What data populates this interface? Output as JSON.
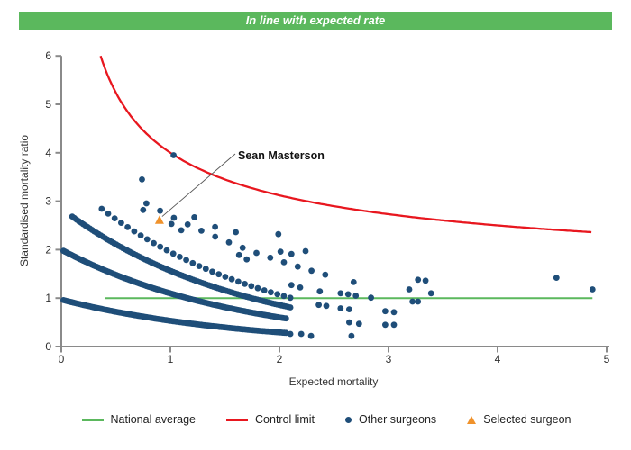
{
  "header": {
    "title": "In line with expected rate",
    "bar_color": "#5bb85d",
    "text_color": "#ffffff"
  },
  "chart_data": {
    "type": "scatter",
    "title": "",
    "xlabel": "Expected mortality",
    "ylabel": "Standardised mortality ratio",
    "xlim": [
      0,
      5
    ],
    "ylim": [
      0,
      6
    ],
    "x_ticks": [
      0,
      1,
      2,
      3,
      4,
      5
    ],
    "y_ticks": [
      0,
      1,
      2,
      3,
      4,
      5,
      6
    ],
    "grid": false,
    "legend_position": "bottom",
    "national_average": {
      "label": "National average",
      "y": 1,
      "x_range": [
        0.4,
        4.87
      ],
      "color": "#5bb85d"
    },
    "control_limit": {
      "label": "Control limit",
      "formula": "y = 1 + 3/sqrt(x)",
      "x_range": [
        0.36,
        4.87
      ],
      "color": "#e8171f"
    },
    "other_surgeons": {
      "label": "Other surgeons",
      "color": "#1f4e79",
      "marker_radius_px": 3.4,
      "bands_formula": "y = a * exp(b * x), sampled uniformly from x_start to x_end",
      "bands": [
        {
          "a": 0.97,
          "b": -0.6,
          "x_start": 0.02,
          "x_end": 2.06,
          "count": 135
        },
        {
          "a": 2.0,
          "b": -0.6,
          "x_start": 0.02,
          "x_end": 2.06,
          "count": 135
        },
        {
          "a": 2.85,
          "b": -0.6,
          "x_start": 0.1,
          "x_end": 2.1,
          "count": 100
        },
        {
          "a": 3.55,
          "b": -0.6,
          "x_start": 0.37,
          "x_end": 2.1,
          "count": 30
        },
        {
          "a": 4.1,
          "b": -0.42,
          "x_start": 0.78,
          "x_end": 2.42,
          "count": 14
        }
      ],
      "points": [
        [
          1.03,
          3.95
        ],
        [
          0.74,
          3.45
        ],
        [
          0.75,
          2.82
        ],
        [
          1.01,
          2.53
        ],
        [
          1.1,
          2.4
        ],
        [
          1.22,
          2.67
        ],
        [
          1.41,
          2.47
        ],
        [
          1.6,
          2.36
        ],
        [
          1.63,
          1.89
        ],
        [
          1.7,
          1.8
        ],
        [
          1.99,
          2.32
        ],
        [
          2.01,
          1.96
        ],
        [
          2.11,
          1.91
        ],
        [
          2.24,
          1.97
        ],
        [
          2.11,
          1.27
        ],
        [
          2.19,
          1.22
        ],
        [
          2.37,
          1.14
        ],
        [
          2.36,
          0.86
        ],
        [
          2.43,
          0.84
        ],
        [
          2.56,
          0.79
        ],
        [
          2.64,
          0.77
        ],
        [
          2.56,
          1.1
        ],
        [
          2.63,
          1.08
        ],
        [
          2.7,
          1.05
        ],
        [
          2.84,
          1.01
        ],
        [
          2.68,
          1.33
        ],
        [
          2.64,
          0.5
        ],
        [
          2.73,
          0.47
        ],
        [
          2.97,
          0.73
        ],
        [
          3.05,
          0.71
        ],
        [
          2.97,
          0.45
        ],
        [
          3.05,
          0.45
        ],
        [
          2.1,
          0.26
        ],
        [
          2.2,
          0.26
        ],
        [
          2.29,
          0.22
        ],
        [
          2.66,
          0.22
        ],
        [
          3.19,
          1.18
        ],
        [
          3.22,
          0.93
        ],
        [
          3.27,
          0.93
        ],
        [
          3.27,
          1.38
        ],
        [
          3.34,
          1.36
        ],
        [
          3.39,
          1.1
        ],
        [
          4.54,
          1.42
        ],
        [
          4.87,
          1.18
        ]
      ]
    },
    "selected_surgeon": {
      "label": "Selected surgeon",
      "name": "Sean Masterson",
      "x": 0.9,
      "y": 2.61,
      "color": "#f0922b"
    },
    "annotation": {
      "text": "Sean Masterson"
    }
  },
  "legend": {
    "items": [
      {
        "label": "National average",
        "type": "line",
        "color": "#5bb85d"
      },
      {
        "label": "Control limit",
        "type": "line",
        "color": "#e8171f"
      },
      {
        "label": "Other surgeons",
        "type": "dot",
        "color": "#1f4e79"
      },
      {
        "label": "Selected surgeon",
        "type": "triangle",
        "color": "#f0922b"
      }
    ]
  }
}
